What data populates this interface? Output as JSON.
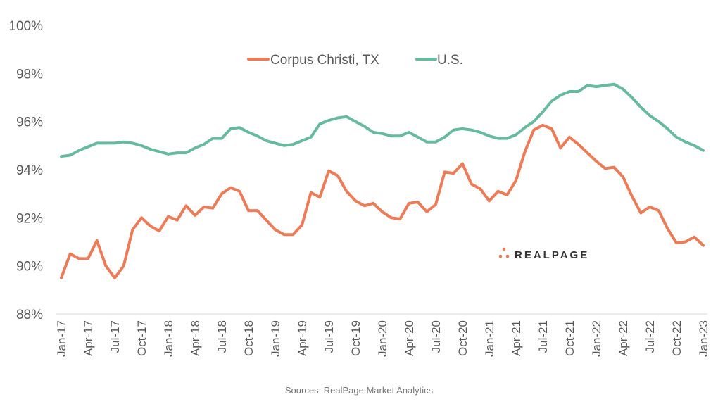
{
  "chart_data": {
    "type": "line",
    "title": "",
    "xlabel": "",
    "ylabel": "",
    "ylim": [
      88,
      100
    ],
    "yticks": [
      "88%",
      "90%",
      "92%",
      "94%",
      "96%",
      "98%",
      "100%"
    ],
    "ytick_values": [
      88,
      90,
      92,
      94,
      96,
      98,
      100
    ],
    "xtick_labels": [
      "Jan-17",
      "Apr-17",
      "Jul-17",
      "Oct-17",
      "Jan-18",
      "Apr-18",
      "Jul-18",
      "Oct-18",
      "Jan-19",
      "Apr-19",
      "Jul-19",
      "Oct-19",
      "Jan-20",
      "Apr-20",
      "Jul-20",
      "Oct-20",
      "Jan-21",
      "Apr-21",
      "Jul-21",
      "Oct-21",
      "Jan-22",
      "Apr-22",
      "Jul-22",
      "Oct-22",
      "Jan-23"
    ],
    "x_start": "Jan-17",
    "x_end": "Jan-23",
    "x_unit": "month",
    "grid": false,
    "legend_position": "top-center",
    "series": [
      {
        "name": "Corpus Christi, TX",
        "color": "#EF7A56",
        "values": [
          89.5,
          90.5,
          90.3,
          90.3,
          91.05,
          90.0,
          89.5,
          90.0,
          91.5,
          92.0,
          91.65,
          91.45,
          92.05,
          91.9,
          92.5,
          92.1,
          92.45,
          92.4,
          93.0,
          93.25,
          93.1,
          92.3,
          92.3,
          91.9,
          91.5,
          91.3,
          91.3,
          91.7,
          93.05,
          92.85,
          93.95,
          93.75,
          93.1,
          92.7,
          92.5,
          92.6,
          92.25,
          92.0,
          91.95,
          92.6,
          92.65,
          92.25,
          92.55,
          93.9,
          93.85,
          94.25,
          93.4,
          93.2,
          92.7,
          93.1,
          92.95,
          93.55,
          94.75,
          95.65,
          95.85,
          95.7,
          94.9,
          95.35,
          95.05,
          94.7,
          94.35,
          94.05,
          94.1,
          93.7,
          92.9,
          92.2,
          92.45,
          92.3,
          91.55,
          90.95,
          91.0,
          91.2,
          90.85
        ]
      },
      {
        "name": "U.S.",
        "color": "#66BB9C",
        "values": [
          94.55,
          94.6,
          94.8,
          94.95,
          95.1,
          95.1,
          95.1,
          95.15,
          95.1,
          95.0,
          94.85,
          94.75,
          94.65,
          94.7,
          94.7,
          94.9,
          95.05,
          95.3,
          95.3,
          95.7,
          95.75,
          95.55,
          95.4,
          95.2,
          95.1,
          95.0,
          95.05,
          95.2,
          95.35,
          95.9,
          96.05,
          96.15,
          96.2,
          96.0,
          95.8,
          95.55,
          95.5,
          95.4,
          95.4,
          95.55,
          95.35,
          95.15,
          95.15,
          95.35,
          95.65,
          95.7,
          95.65,
          95.55,
          95.4,
          95.3,
          95.3,
          95.45,
          95.75,
          96.0,
          96.4,
          96.85,
          97.1,
          97.25,
          97.25,
          97.5,
          97.45,
          97.5,
          97.55,
          97.35,
          97.0,
          96.6,
          96.25,
          96.0,
          95.7,
          95.35,
          95.15,
          95.0,
          94.8
        ]
      }
    ],
    "source": "Sources: RealPage Market Analytics"
  },
  "logo": {
    "text": "REALPAGE",
    "color": "#EF7A56"
  }
}
